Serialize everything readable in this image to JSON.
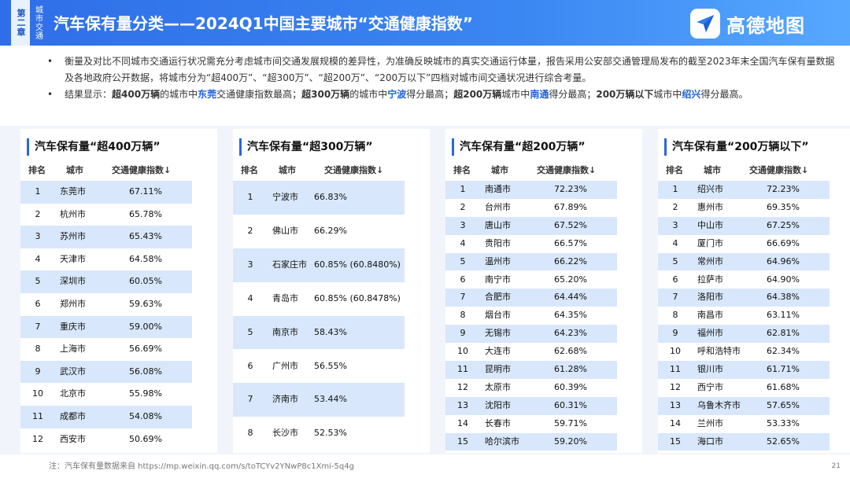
{
  "header": {
    "chapter": "第二章",
    "section": "城市交通",
    "title": "汽车保有量分类——2024Q1中国主要城市“交通健康指数”",
    "logo_text": "高德地图",
    "logo_icon": "navigation-arrow-icon"
  },
  "notes": {
    "bullet": "•",
    "p1": "衡量及对比不同城市交通运行状况需充分考虑城市间交通发展规模的差异性，为准确反映城市的真实交通运行体量，报告采用公安部交通管理局发布的截至2023年末全国汽车保有量数据及各地政府公开数据，将城市分为“超400万”、“超300万”、“超200万”、“200万以下”四档对城市间交通状况进行综合考量。",
    "p2": {
      "a": "结果显示：",
      "b": "超400万辆",
      "c": "的城市中",
      "d": "东莞",
      "e": "交通健康指数最高；",
      "f": "超300万辆",
      "g": "的城市中",
      "h": "宁波",
      "i": "得分最高；",
      "j": "超200万辆",
      "k": "城市中",
      "l": "南通",
      "m": "得分最高；",
      "n": "200万辆以下",
      "o": "城市中",
      "p": "绍兴",
      "q": "得分最高。"
    }
  },
  "table_header": {
    "rank": "排名",
    "city": "城市",
    "index": "交通健康指数↓"
  },
  "panels": [
    {
      "title": "汽车保有量“超400万辆”",
      "rows": [
        {
          "rank": "1",
          "city": "东莞市",
          "value": "67.11%"
        },
        {
          "rank": "2",
          "city": "杭州市",
          "value": "65.78%"
        },
        {
          "rank": "3",
          "city": "苏州市",
          "value": "65.43%"
        },
        {
          "rank": "4",
          "city": "天津市",
          "value": "64.58%"
        },
        {
          "rank": "5",
          "city": "深圳市",
          "value": "60.05%"
        },
        {
          "rank": "6",
          "city": "郑州市",
          "value": "59.63%"
        },
        {
          "rank": "7",
          "city": "重庆市",
          "value": "59.00%"
        },
        {
          "rank": "8",
          "city": "上海市",
          "value": "56.69%"
        },
        {
          "rank": "9",
          "city": "武汉市",
          "value": "56.08%"
        },
        {
          "rank": "10",
          "city": "北京市",
          "value": "55.98%"
        },
        {
          "rank": "11",
          "city": "成都市",
          "value": "54.08%"
        },
        {
          "rank": "12",
          "city": "西安市",
          "value": "50.69%"
        }
      ]
    },
    {
      "title": "汽车保有量“超300万辆”",
      "rows": [
        {
          "rank": "1",
          "city": "宁波市",
          "value": "66.83%"
        },
        {
          "rank": "2",
          "city": "佛山市",
          "value": "66.29%"
        },
        {
          "rank": "3",
          "city": "石家庄市",
          "value": "60.85% (60.8480%)"
        },
        {
          "rank": "4",
          "city": "青岛市",
          "value": "60.85% (60.8478%)"
        },
        {
          "rank": "5",
          "city": "南京市",
          "value": "58.43%"
        },
        {
          "rank": "6",
          "city": "广州市",
          "value": "56.55%"
        },
        {
          "rank": "7",
          "city": "济南市",
          "value": "53.44%"
        },
        {
          "rank": "8",
          "city": "长沙市",
          "value": "52.53%"
        }
      ]
    },
    {
      "title": "汽车保有量“超200万辆”",
      "rows": [
        {
          "rank": "1",
          "city": "南通市",
          "value": "72.23%"
        },
        {
          "rank": "2",
          "city": "台州市",
          "value": "67.89%"
        },
        {
          "rank": "3",
          "city": "唐山市",
          "value": "67.52%"
        },
        {
          "rank": "4",
          "city": "贵阳市",
          "value": "66.57%"
        },
        {
          "rank": "5",
          "city": "温州市",
          "value": "66.22%"
        },
        {
          "rank": "6",
          "city": "南宁市",
          "value": "65.20%"
        },
        {
          "rank": "7",
          "city": "合肥市",
          "value": "64.44%"
        },
        {
          "rank": "8",
          "city": "烟台市",
          "value": "64.35%"
        },
        {
          "rank": "9",
          "city": "无锡市",
          "value": "64.23%"
        },
        {
          "rank": "10",
          "city": "大连市",
          "value": "62.68%"
        },
        {
          "rank": "11",
          "city": "昆明市",
          "value": "61.28%"
        },
        {
          "rank": "12",
          "city": "太原市",
          "value": "60.39%"
        },
        {
          "rank": "13",
          "city": "沈阳市",
          "value": "60.31%"
        },
        {
          "rank": "14",
          "city": "长春市",
          "value": "59.71%"
        },
        {
          "rank": "15",
          "city": "哈尔滨市",
          "value": "59.20%"
        }
      ]
    },
    {
      "title": "汽车保有量“200万辆以下”",
      "rows": [
        {
          "rank": "1",
          "city": "绍兴市",
          "value": "72.23%"
        },
        {
          "rank": "2",
          "city": "惠州市",
          "value": "69.35%"
        },
        {
          "rank": "3",
          "city": "中山市",
          "value": "67.25%"
        },
        {
          "rank": "4",
          "city": "厦门市",
          "value": "66.69%"
        },
        {
          "rank": "5",
          "city": "常州市",
          "value": "64.96%"
        },
        {
          "rank": "6",
          "city": "拉萨市",
          "value": "64.90%"
        },
        {
          "rank": "7",
          "city": "洛阳市",
          "value": "64.38%"
        },
        {
          "rank": "8",
          "city": "南昌市",
          "value": "63.11%"
        },
        {
          "rank": "9",
          "city": "福州市",
          "value": "62.81%"
        },
        {
          "rank": "10",
          "city": "呼和浩特市",
          "value": "62.34%"
        },
        {
          "rank": "11",
          "city": "银川市",
          "value": "61.71%"
        },
        {
          "rank": "12",
          "city": "西宁市",
          "value": "61.68%"
        },
        {
          "rank": "13",
          "city": "乌鲁木齐市",
          "value": "57.65%"
        },
        {
          "rank": "14",
          "city": "兰州市",
          "value": "53.33%"
        },
        {
          "rank": "15",
          "city": "海口市",
          "value": "52.65%"
        }
      ]
    }
  ],
  "footnote": "注：汽车保有量数据来自 https://mp.weixin.qq.com/s/toTCYv2YNwP8c1Xmi-5q4g",
  "page_number": "21",
  "colors": {
    "header": "#2f6ee8",
    "highlight_text": "#1e63d6",
    "row_stripe": "#d8e7fb",
    "band": "#f1f5fb"
  }
}
